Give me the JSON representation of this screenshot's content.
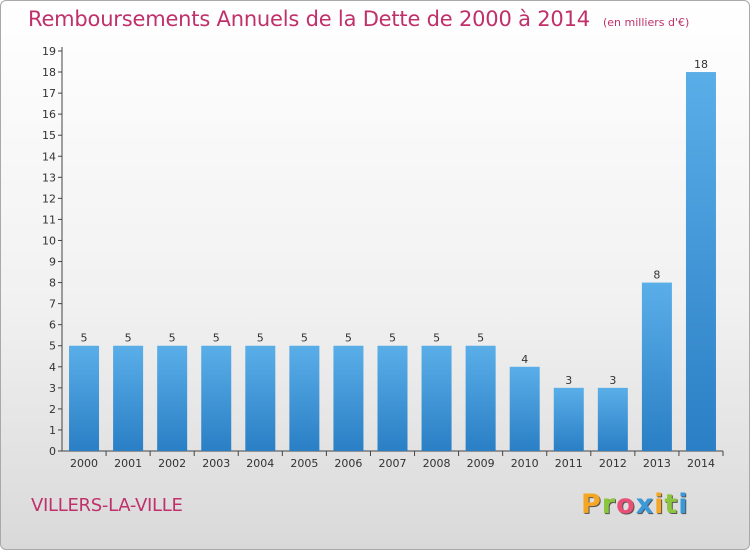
{
  "header": {
    "title": "Remboursements Annuels de la Dette de 2000 à 2014",
    "unit": "(en milliers d'€)"
  },
  "footer": {
    "commune": "VILLERS-LA-VILLE",
    "brand": "Proxiti"
  },
  "colors": {
    "title": "#c0306a",
    "bar_light": "#5aaee8",
    "bar_dark": "#2a7fc5",
    "brand_letters": [
      "#f5a623",
      "#8cc63f",
      "#e94e77",
      "#3a9ad9",
      "#f5a623",
      "#8cc63f",
      "#3a9ad9"
    ]
  },
  "chart_data": {
    "type": "bar",
    "categories": [
      "2000",
      "2001",
      "2002",
      "2003",
      "2004",
      "2005",
      "2006",
      "2007",
      "2008",
      "2009",
      "2010",
      "2011",
      "2012",
      "2013",
      "2014"
    ],
    "values": [
      5,
      5,
      5,
      5,
      5,
      5,
      5,
      5,
      5,
      5,
      4,
      3,
      3,
      8,
      18
    ],
    "data_labels": [
      "5",
      "5",
      "5",
      "5",
      "5",
      "5",
      "5",
      "5",
      "5",
      "5",
      "4",
      "3",
      "3",
      "8",
      "18"
    ],
    "yticks": [
      "0",
      "1",
      "2",
      "3",
      "4",
      "5",
      "6",
      "7",
      "8",
      "9",
      "10",
      "11",
      "12",
      "13",
      "14",
      "15",
      "16",
      "17",
      "18",
      "19"
    ],
    "ylim": [
      0,
      19
    ],
    "grid": false
  }
}
